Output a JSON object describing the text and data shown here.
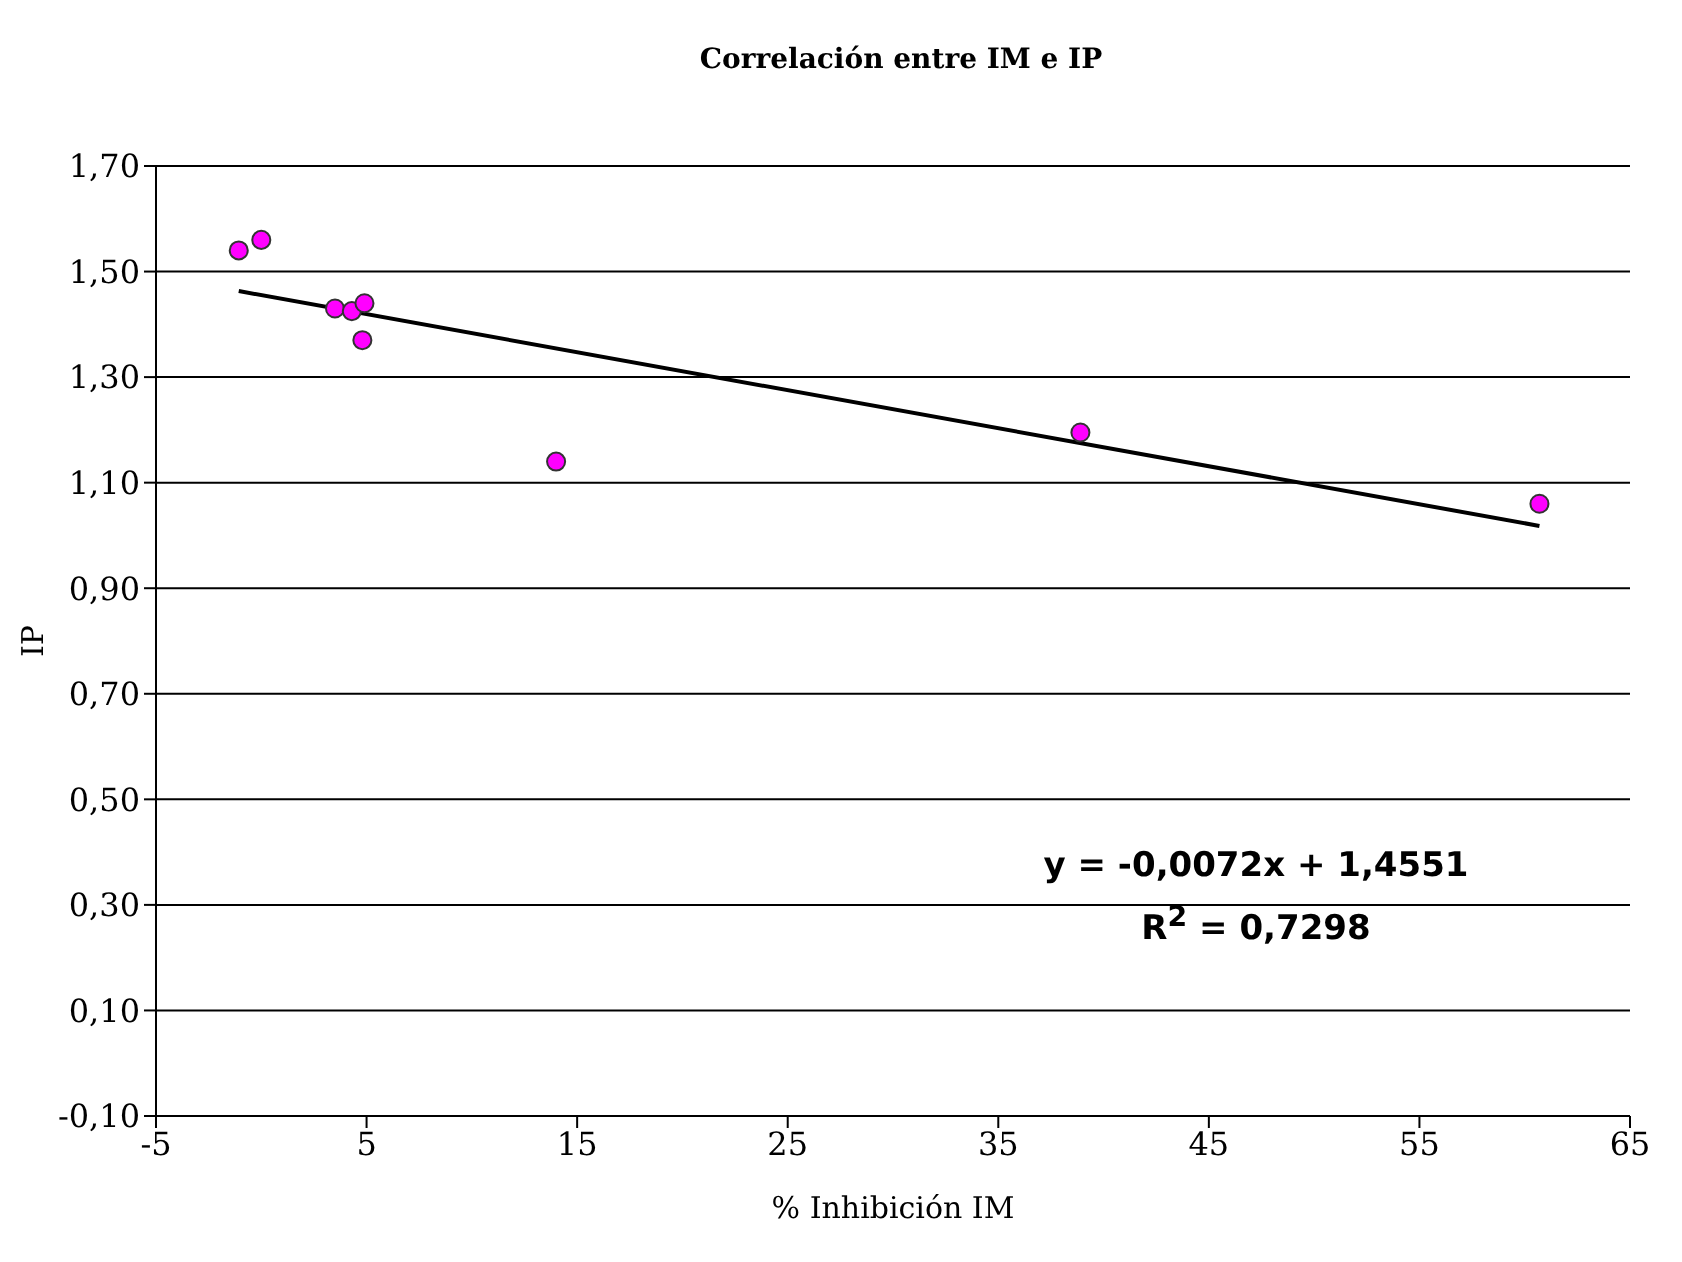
{
  "chart_data": {
    "type": "scatter",
    "title": "Correlación entre IM e IP",
    "xlabel": "% Inhibición IM",
    "ylabel": "IP",
    "annotations": [
      "y = -0,0072x + 1,4551",
      "R$^{2}$ = 0,7298"
    ],
    "series": [
      {
        "type": "scatter",
        "color": "#ff00ff",
        "marker": "circle",
        "x": [
          -1.07,
          0,
          3.5,
          4.3,
          4.9,
          4.8,
          14,
          38.9,
          60.7
        ],
        "values": [
          1.54,
          1.56,
          1.43,
          1.425,
          1.44,
          1.37,
          1.14,
          1.195,
          1.06
        ]
      },
      {
        "type": "line",
        "color": "#000000",
        "marker": "none",
        "line_style": "solid",
        "x": [
          -1.07,
          60.7
        ],
        "values": [
          1.463,
          1.018
        ]
      }
    ],
    "xlim": [
      -5,
      65
    ],
    "xticks": [
      -5,
      5,
      15,
      25,
      35,
      45,
      55,
      65
    ],
    "ylim": [
      -0.1,
      1.7
    ],
    "yticks": [
      {
        "value": -0.1,
        "label": "-0,10"
      },
      {
        "value": 0.1,
        "label": "0,10"
      },
      {
        "value": 0.3,
        "label": "0,30"
      },
      {
        "value": 0.5,
        "label": "0,50"
      },
      {
        "value": 0.7,
        "label": "0,70"
      },
      {
        "value": 0.9,
        "label": "0,90"
      },
      {
        "value": 1.1,
        "label": "1,10"
      },
      {
        "value": 1.3,
        "label": "1,30"
      },
      {
        "value": 1.5,
        "label": "1,50"
      },
      {
        "value": 1.7,
        "label": "1,70"
      }
    ],
    "grid": "y"
  }
}
